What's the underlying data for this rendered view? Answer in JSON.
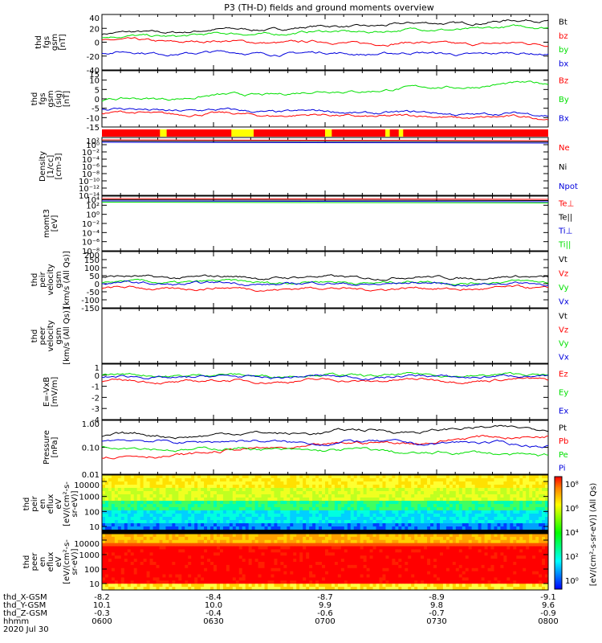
{
  "title": "P3 (TH-D) fields and ground moments overview",
  "colors": {
    "black": "#000000",
    "red": "#ff0000",
    "green": "#00e000",
    "blue": "#0000dd",
    "yellow": "#ffff00"
  },
  "chart_data": [
    {
      "type": "line",
      "ylabel_lines": [
        "thd",
        "fgs",
        "gsm",
        "[nT]"
      ],
      "ylim": [
        -40,
        40
      ],
      "yticks": [
        "40",
        "20",
        "0",
        "-20",
        "-40"
      ],
      "series": [
        {
          "name": "Bt",
          "color": "black",
          "start": 12,
          "end": 32
        },
        {
          "name": "bz",
          "color": "red",
          "start": 2,
          "end": -3
        },
        {
          "name": "by",
          "color": "green",
          "start": 7,
          "end": 22
        },
        {
          "name": "bx",
          "color": "blue",
          "start": -15,
          "end": -17
        }
      ]
    },
    {
      "type": "line",
      "ylabel_lines": [
        "thd",
        "fgs",
        "gsm",
        "(sig)",
        "[nT]"
      ],
      "ylim": [
        -17,
        15
      ],
      "yticks": [
        "15",
        "10",
        "5",
        "0",
        "-5",
        "-10",
        "-15"
      ],
      "series": [
        {
          "name": "Bz",
          "color": "red",
          "start": -9,
          "end": -12
        },
        {
          "name": "By",
          "color": "green",
          "start": -2,
          "end": 8
        },
        {
          "name": "Bx",
          "color": "blue",
          "start": -7,
          "end": -10
        }
      ]
    },
    {
      "type": "bar",
      "name": "flag-bar"
    },
    {
      "type": "line",
      "ylabel_lines": [
        "Density",
        "[1/cc]",
        "[cm-3]"
      ],
      "scale": "log",
      "yticks": [
        "10²",
        "10⁰",
        "10⁻²",
        "10⁻⁴",
        "10⁻⁶",
        "10⁻⁸",
        "10⁻¹⁰",
        "10⁻¹²",
        "10⁻¹⁴"
      ],
      "series": [
        {
          "name": "Ne",
          "color": "red"
        },
        {
          "name": "Ni",
          "color": "black"
        },
        {
          "name": "Npot",
          "color": "blue"
        }
      ]
    },
    {
      "type": "line",
      "ylabel_lines": [
        "momt3",
        "[eV]"
      ],
      "scale": "log",
      "yticks": [
        "10⁴",
        "10²",
        "10⁰",
        "10⁻²",
        "10⁻⁴",
        "10⁻⁶",
        "10⁻⁸"
      ],
      "series": [
        {
          "name": "Te⊥",
          "color": "red"
        },
        {
          "name": "Te||",
          "color": "black"
        },
        {
          "name": "Ti⊥",
          "color": "blue"
        },
        {
          "name": "Ti||",
          "color": "green"
        }
      ]
    },
    {
      "type": "line",
      "ylabel_lines": [
        "thd",
        "peir",
        "velocity",
        "gsm",
        "[km/s (All Qs)]"
      ],
      "ylim": [
        -150,
        200
      ],
      "yticks": [
        "200",
        "150",
        "100",
        "50",
        "0",
        "-50",
        "-100",
        "-150"
      ],
      "series": [
        {
          "name": "Vt",
          "color": "black",
          "start": 40,
          "end": 40
        },
        {
          "name": "Vz",
          "color": "red",
          "start": -30,
          "end": -30
        },
        {
          "name": "Vy",
          "color": "green",
          "start": 10,
          "end": 10
        },
        {
          "name": "Vx",
          "color": "blue",
          "start": 0,
          "end": 0
        }
      ]
    },
    {
      "type": "line",
      "ylabel_lines": [
        "thd",
        "peer",
        "velocity",
        "gsm",
        "[km/s (All Qs)]"
      ],
      "series": [
        {
          "name": "Vt",
          "color": "black"
        },
        {
          "name": "Vz",
          "color": "red"
        },
        {
          "name": "Vy",
          "color": "green"
        },
        {
          "name": "Vx",
          "color": "blue"
        }
      ]
    },
    {
      "type": "line",
      "ylabel_lines": [
        "E=-VxB",
        "[mV/m]"
      ],
      "ylim": [
        -4,
        1
      ],
      "yticks": [
        "1",
        "0",
        "-1",
        "-2",
        "-3",
        "-4"
      ],
      "series": [
        {
          "name": "Ez",
          "color": "red",
          "start": -0.6,
          "end": -0.4
        },
        {
          "name": "Ey",
          "color": "green",
          "start": 0,
          "end": 0
        },
        {
          "name": "Ex",
          "color": "blue",
          "start": -0.2,
          "end": -0.1
        }
      ]
    },
    {
      "type": "line",
      "ylabel_lines": [
        "Pressure",
        "[nPa]"
      ],
      "scale": "log",
      "yticks": [
        "1.00",
        "0.10",
        "0.01"
      ],
      "series": [
        {
          "name": "Pt",
          "color": "black",
          "start": 0.25,
          "end": 0.55
        },
        {
          "name": "Pb",
          "color": "red",
          "start": 0.04,
          "end": 0.3
        },
        {
          "name": "Pe",
          "color": "green",
          "start": 0.11,
          "end": 0.05
        },
        {
          "name": "Pi",
          "color": "blue",
          "start": 0.18,
          "end": 0.13
        }
      ]
    },
    {
      "type": "heatmap",
      "ylabel_lines": [
        "thd",
        "peir",
        "en",
        "eflux",
        "eV",
        "[eV/(cm²-s-",
        "sr-eV)]"
      ],
      "yticks": [
        "10000",
        "1000",
        "100",
        "10"
      ]
    },
    {
      "type": "heatmap",
      "ylabel_lines": [
        "thd",
        "peer",
        "en",
        "eflux",
        "eV",
        "[eV/(cm²-s-",
        "sr-eV)]"
      ],
      "yticks": [
        "10000",
        "1000",
        "100",
        "10"
      ]
    }
  ],
  "colorbar": {
    "label": "[eV/(cm²-s-sr-eV)] (All Qs)",
    "ticks": [
      "10⁸",
      "10⁶",
      "10⁴",
      "10²",
      "10⁰"
    ]
  },
  "xaxis": {
    "row_labels": [
      "thd_X-GSM",
      "thd_Y-GSM",
      "thd_Z-GSM",
      "hhmm",
      "2020 Jul 30"
    ],
    "columns": [
      {
        "x": "-8.2",
        "y": "10.1",
        "z": "-0.3",
        "t": "0600"
      },
      {
        "x": "-8.4",
        "y": "10.0",
        "z": "-0.4",
        "t": "0630"
      },
      {
        "x": "-8.7",
        "y": "9.9",
        "z": "-0.6",
        "t": "0700"
      },
      {
        "x": "-8.9",
        "y": "9.8",
        "z": "-0.7",
        "t": "0730"
      },
      {
        "x": "-9.1",
        "y": "9.6",
        "z": "-0.9",
        "t": "0800"
      }
    ]
  }
}
